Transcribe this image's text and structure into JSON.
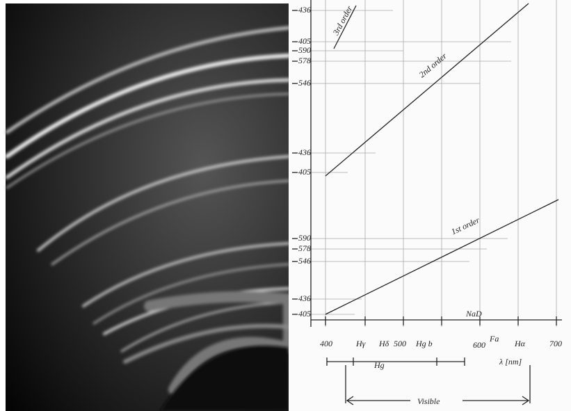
{
  "scale_labels": [
    "436",
    "405",
    "590",
    "578",
    "546",
    "436",
    "405",
    "590",
    "578",
    "546",
    "436",
    "405"
  ],
  "orders": [
    "3rd order",
    "2nd order",
    "1st order"
  ],
  "x_axis": {
    "labels": [
      "400",
      "Hγ",
      "Hδ",
      "500",
      "Hg b",
      "600",
      "Fa",
      "Hα",
      "700"
    ]
  },
  "annotations": {
    "sodium": "NaD",
    "mercury": "Hg",
    "visible": "Visible",
    "unit": "λ [nm]"
  }
}
